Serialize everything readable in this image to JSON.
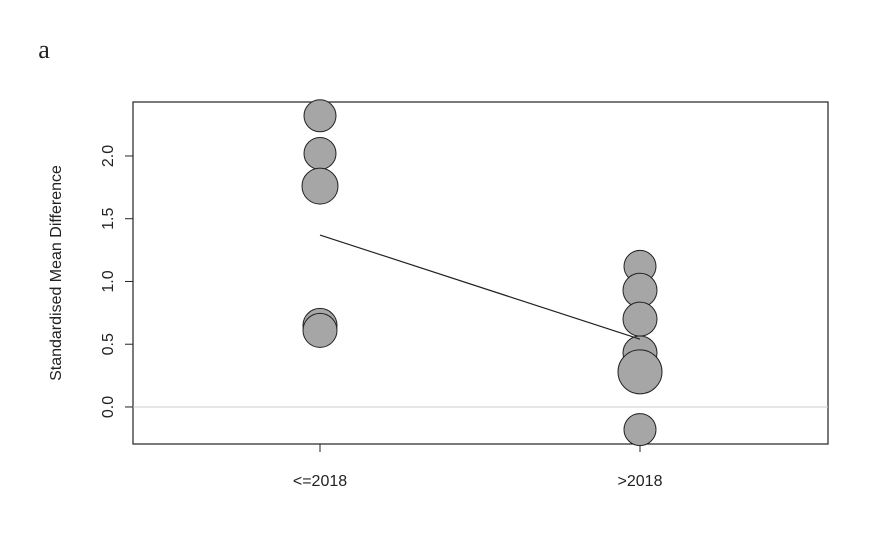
{
  "panel_label": "a",
  "chart_data": {
    "type": "bubble",
    "y_label": "Standardised Mean Difference",
    "categories": [
      "<=2018",
      ">2018"
    ],
    "groups": [
      {
        "values": [
          2.32,
          2.02,
          1.76,
          0.65,
          0.61
        ],
        "sizes": [
          16,
          16,
          18,
          17,
          17
        ]
      },
      {
        "values": [
          1.12,
          0.93,
          0.7,
          0.43,
          0.28,
          -0.18
        ],
        "sizes": [
          16,
          17,
          17,
          17,
          22,
          16
        ]
      }
    ],
    "fit_line": [
      1.37,
      0.54
    ],
    "reference_line": 0,
    "point_color": "#a6a6a6",
    "ylim": [
      -0.295,
      2.43
    ],
    "yticks": [
      {
        "value": 0,
        "label": "0.0"
      },
      0.5,
      {
        "value": 1,
        "label": "1.0"
      },
      1.5,
      {
        "value": 2,
        "label": "2.0"
      }
    ]
  }
}
